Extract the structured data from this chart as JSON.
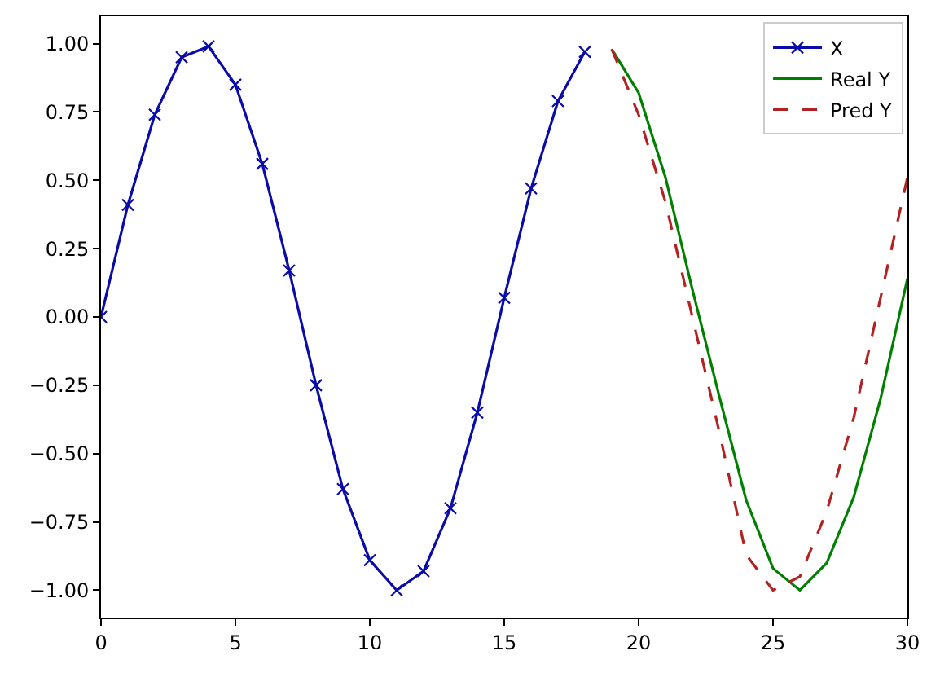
{
  "chart_data": {
    "type": "line",
    "xlim": [
      0,
      30
    ],
    "xticks": [
      0,
      5,
      10,
      15,
      20,
      25,
      30
    ],
    "ylim": [
      -1.1,
      1.1
    ],
    "yticks": [
      {
        "value": -1,
        "label": "−1.00"
      },
      {
        "value": -0.75,
        "label": "−0.75"
      },
      {
        "value": -0.5,
        "label": "−0.50"
      },
      {
        "value": -0.25,
        "label": "−0.25"
      },
      {
        "value": 0,
        "label": "0.00"
      },
      {
        "value": 0.25,
        "label": "0.25"
      },
      {
        "value": 0.5,
        "label": "0.50"
      },
      {
        "value": 0.75,
        "label": "0.75"
      },
      {
        "value": 1,
        "label": "1.00"
      }
    ],
    "legend": "top right",
    "series": [
      {
        "name": "X",
        "color": "#0b0ba8",
        "marker": "cross",
        "line_style": "solid",
        "x": [
          0,
          1,
          2,
          3,
          4,
          5,
          6,
          7,
          8,
          9,
          10,
          11,
          12,
          13,
          14,
          15,
          16,
          17,
          18
        ],
        "values": [
          0,
          0.41,
          0.74,
          0.95,
          0.99,
          0.85,
          0.56,
          0.17,
          -0.25,
          -0.63,
          -0.89,
          -1.0,
          -0.93,
          -0.7,
          -0.35,
          0.07,
          0.47,
          0.79,
          0.97
        ]
      },
      {
        "name": "Real Y",
        "color": "#008000",
        "marker": "none",
        "line_style": "solid",
        "x": [
          19,
          20,
          21,
          22,
          23,
          24,
          25,
          26,
          27,
          28,
          29,
          30
        ],
        "values": [
          0.98,
          0.82,
          0.51,
          0.1,
          -0.29,
          -0.67,
          -0.92,
          -1.0,
          -0.9,
          -0.66,
          -0.3,
          0.14
        ]
      },
      {
        "name": "Pred Y",
        "color": "#b22222",
        "marker": "none",
        "line_style": "dashed",
        "x": [
          19,
          20,
          21,
          22,
          23,
          24,
          25,
          26,
          27,
          28,
          29,
          30
        ],
        "values": [
          0.98,
          0.74,
          0.42,
          0.0,
          -0.42,
          -0.87,
          -1.0,
          -0.95,
          -0.71,
          -0.37,
          0.07,
          0.51
        ]
      }
    ]
  }
}
